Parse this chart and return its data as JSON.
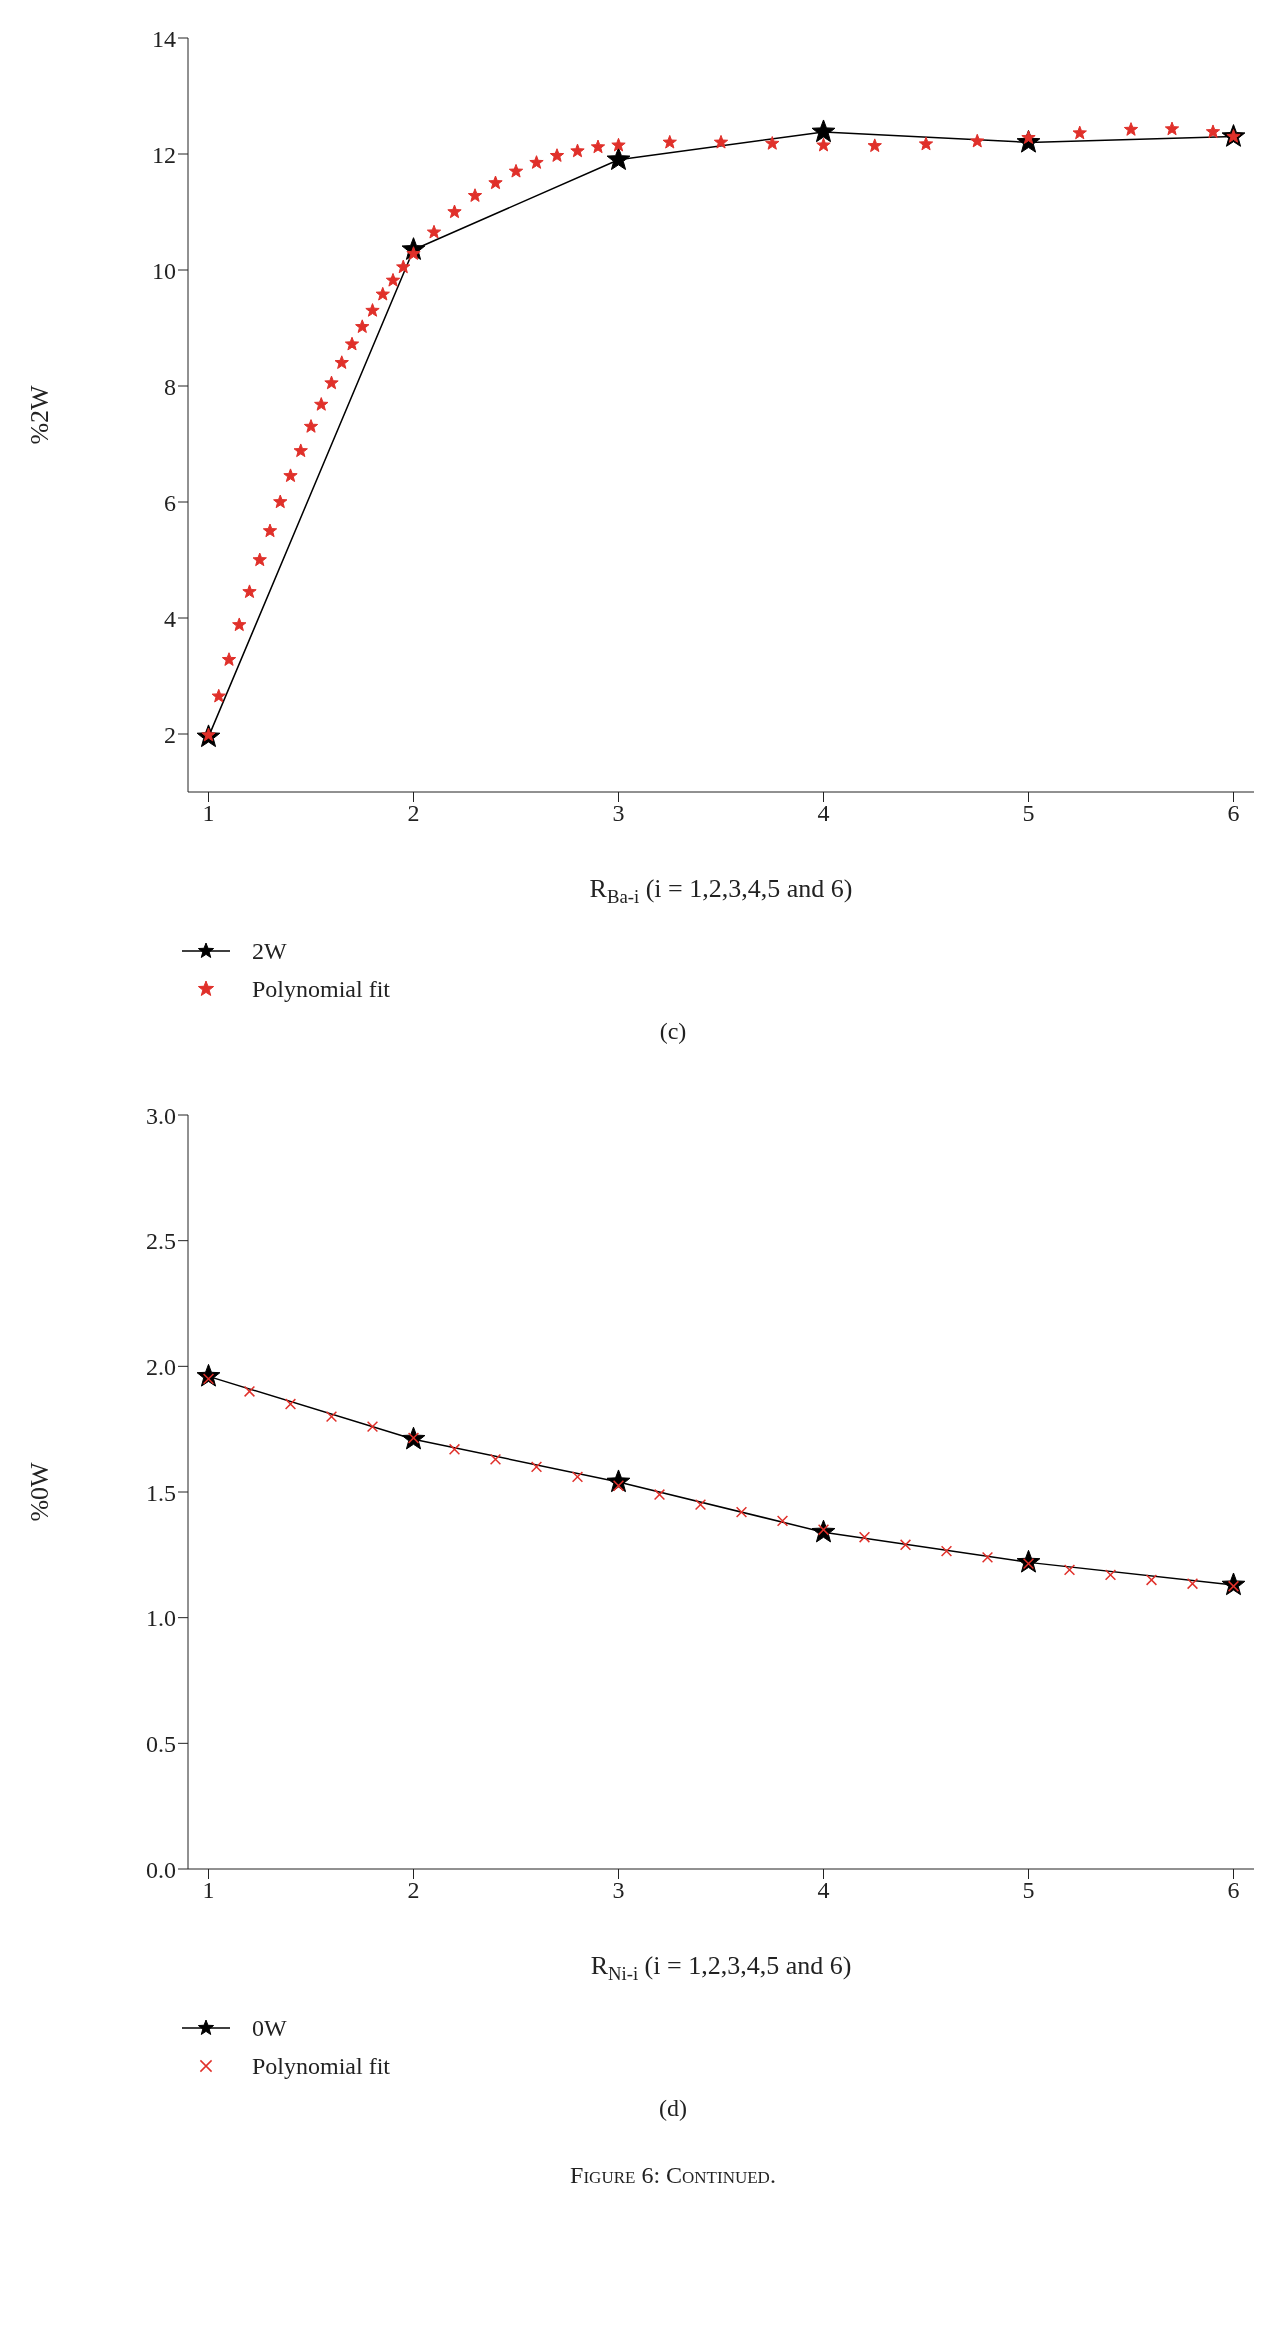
{
  "chart_data": [
    {
      "type": "line",
      "xlabel": "R$_{Ba-i}$ (i = 1,2,3,4,5 and 6)",
      "ylabel": "%2W",
      "xlim": [
        0.9,
        6.1
      ],
      "xticks": [
        1,
        2,
        3,
        4,
        5,
        6
      ],
      "ylim": [
        1,
        14
      ],
      "yticks": [
        2,
        4,
        6,
        8,
        10,
        12,
        14
      ],
      "grid": false,
      "legend": "bottom left",
      "annotations": [
        "(c)"
      ],
      "series": [
        {
          "name": "2W",
          "marker": "star",
          "color": "#000000",
          "x": [
            1,
            2,
            3,
            4,
            5,
            6
          ],
          "values": [
            1.95,
            10.35,
            11.9,
            12.38,
            12.2,
            12.3
          ]
        },
        {
          "name": "Polynomial fit",
          "type": "scatter",
          "marker": "star",
          "color": "#e0302a",
          "x": [
            1,
            1.05,
            1.1,
            1.15,
            1.2,
            1.25,
            1.3,
            1.35,
            1.4,
            1.45,
            1.5,
            1.55,
            1.6,
            1.65,
            1.7,
            1.75,
            1.8,
            1.85,
            1.9,
            1.95,
            2.0,
            2.1,
            2.2,
            2.3,
            2.4,
            2.5,
            2.6,
            2.7,
            2.8,
            2.9,
            3.0,
            3.25,
            3.5,
            3.75,
            4.0,
            4.25,
            4.5,
            4.75,
            5.0,
            5.25,
            5.5,
            5.7,
            5.9,
            6.0
          ],
          "values": [
            1.98,
            2.65,
            3.28,
            3.88,
            4.45,
            5.0,
            5.5,
            6.0,
            6.45,
            6.88,
            7.3,
            7.68,
            8.05,
            8.4,
            8.72,
            9.02,
            9.3,
            9.58,
            9.82,
            10.05,
            10.28,
            10.65,
            11.0,
            11.28,
            11.5,
            11.7,
            11.85,
            11.97,
            12.05,
            12.12,
            12.15,
            12.2,
            12.2,
            12.18,
            12.15,
            12.14,
            12.17,
            12.22,
            12.28,
            12.36,
            12.42,
            12.43,
            12.38,
            12.3
          ]
        }
      ]
    },
    {
      "type": "line",
      "xlabel": "R$_{Ni-i}$ (i = 1,2,3,4,5 and 6)",
      "ylabel": "%0W",
      "xlim": [
        0.9,
        6.1
      ],
      "xticks": [
        1,
        2,
        3,
        4,
        5,
        6
      ],
      "ylim": [
        0,
        3
      ],
      "yticks": [
        {
          "value": 0,
          "label": "0.0"
        },
        0.5,
        {
          "value": 1,
          "label": "1.0"
        },
        1.5,
        {
          "value": 2,
          "label": "2.0"
        },
        2.5,
        {
          "value": 3,
          "label": "3.0"
        }
      ],
      "grid": false,
      "legend": "bottom left",
      "annotations": [
        "(d)",
        "Figure 6: Continued."
      ],
      "series": [
        {
          "name": "0W",
          "marker": "star",
          "color": "#000000",
          "x": [
            1,
            2,
            3,
            4,
            5,
            6
          ],
          "values": [
            1.96,
            1.71,
            1.54,
            1.34,
            1.22,
            1.13
          ]
        },
        {
          "name": "Polynomial fit",
          "type": "scatter",
          "marker": "cross",
          "color": "#e0302a",
          "x": [
            1,
            1.2,
            1.4,
            1.6,
            1.8,
            2.0,
            2.2,
            2.4,
            2.6,
            2.8,
            3.0,
            3.2,
            3.4,
            3.6,
            3.8,
            4.0,
            4.2,
            4.4,
            4.6,
            4.8,
            5.0,
            5.2,
            5.4,
            5.6,
            5.8,
            6.0
          ],
          "values": [
            1.95,
            1.9,
            1.85,
            1.8,
            1.76,
            1.715,
            1.67,
            1.63,
            1.6,
            1.56,
            1.525,
            1.49,
            1.45,
            1.42,
            1.385,
            1.35,
            1.32,
            1.29,
            1.265,
            1.24,
            1.215,
            1.19,
            1.17,
            1.15,
            1.135,
            1.125
          ]
        }
      ]
    }
  ]
}
